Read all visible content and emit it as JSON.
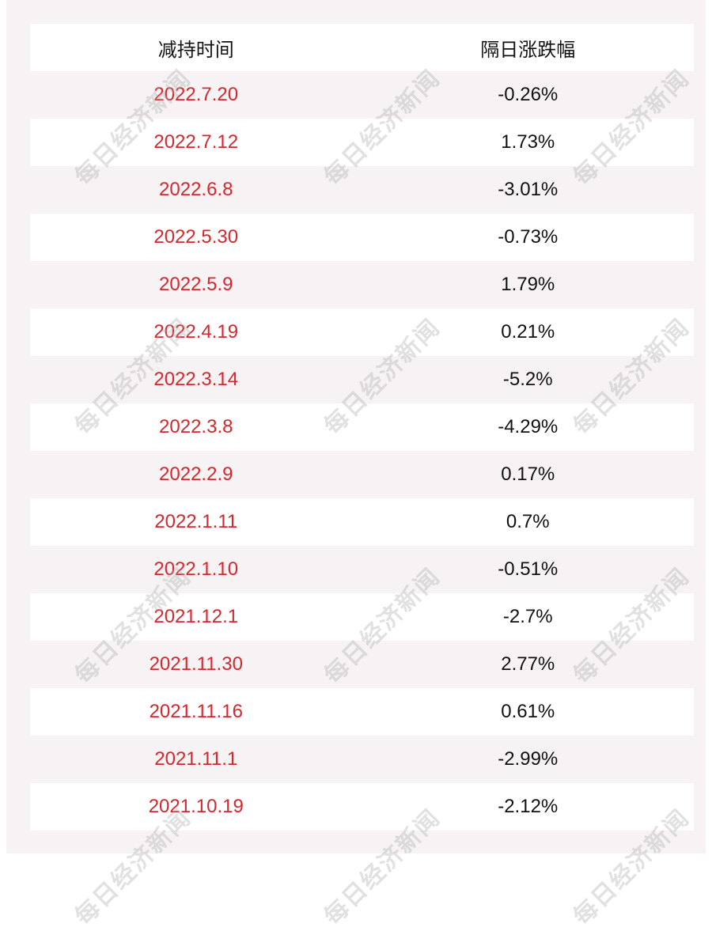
{
  "header": {
    "col1": "减持时间",
    "col2": "隔日涨跌幅"
  },
  "rows": [
    {
      "date": "2022.7.20",
      "change": "-0.26%"
    },
    {
      "date": "2022.7.12",
      "change": "1.73%"
    },
    {
      "date": "2022.6.8",
      "change": "-3.01%"
    },
    {
      "date": "2022.5.30",
      "change": "-0.73%"
    },
    {
      "date": "2022.5.9",
      "change": "1.79%"
    },
    {
      "date": "2022.4.19",
      "change": "0.21%"
    },
    {
      "date": "2022.3.14",
      "change": "-5.2%"
    },
    {
      "date": "2022.3.8",
      "change": "-4.29%"
    },
    {
      "date": "2022.2.9",
      "change": "0.17%"
    },
    {
      "date": "2022.1.11",
      "change": "0.7%"
    },
    {
      "date": "2022.1.10",
      "change": "-0.51%"
    },
    {
      "date": "2021.12.1",
      "change": "-2.7%"
    },
    {
      "date": "2021.11.30",
      "change": "2.77%"
    },
    {
      "date": "2021.11.16",
      "change": "0.61%"
    },
    {
      "date": "2021.11.1",
      "change": "-2.99%"
    },
    {
      "date": "2021.10.19",
      "change": "-2.12%"
    }
  ],
  "watermark": "每日经济新闻",
  "colors": {
    "date_text": "#d6262e",
    "background": "#f7f3f4"
  }
}
